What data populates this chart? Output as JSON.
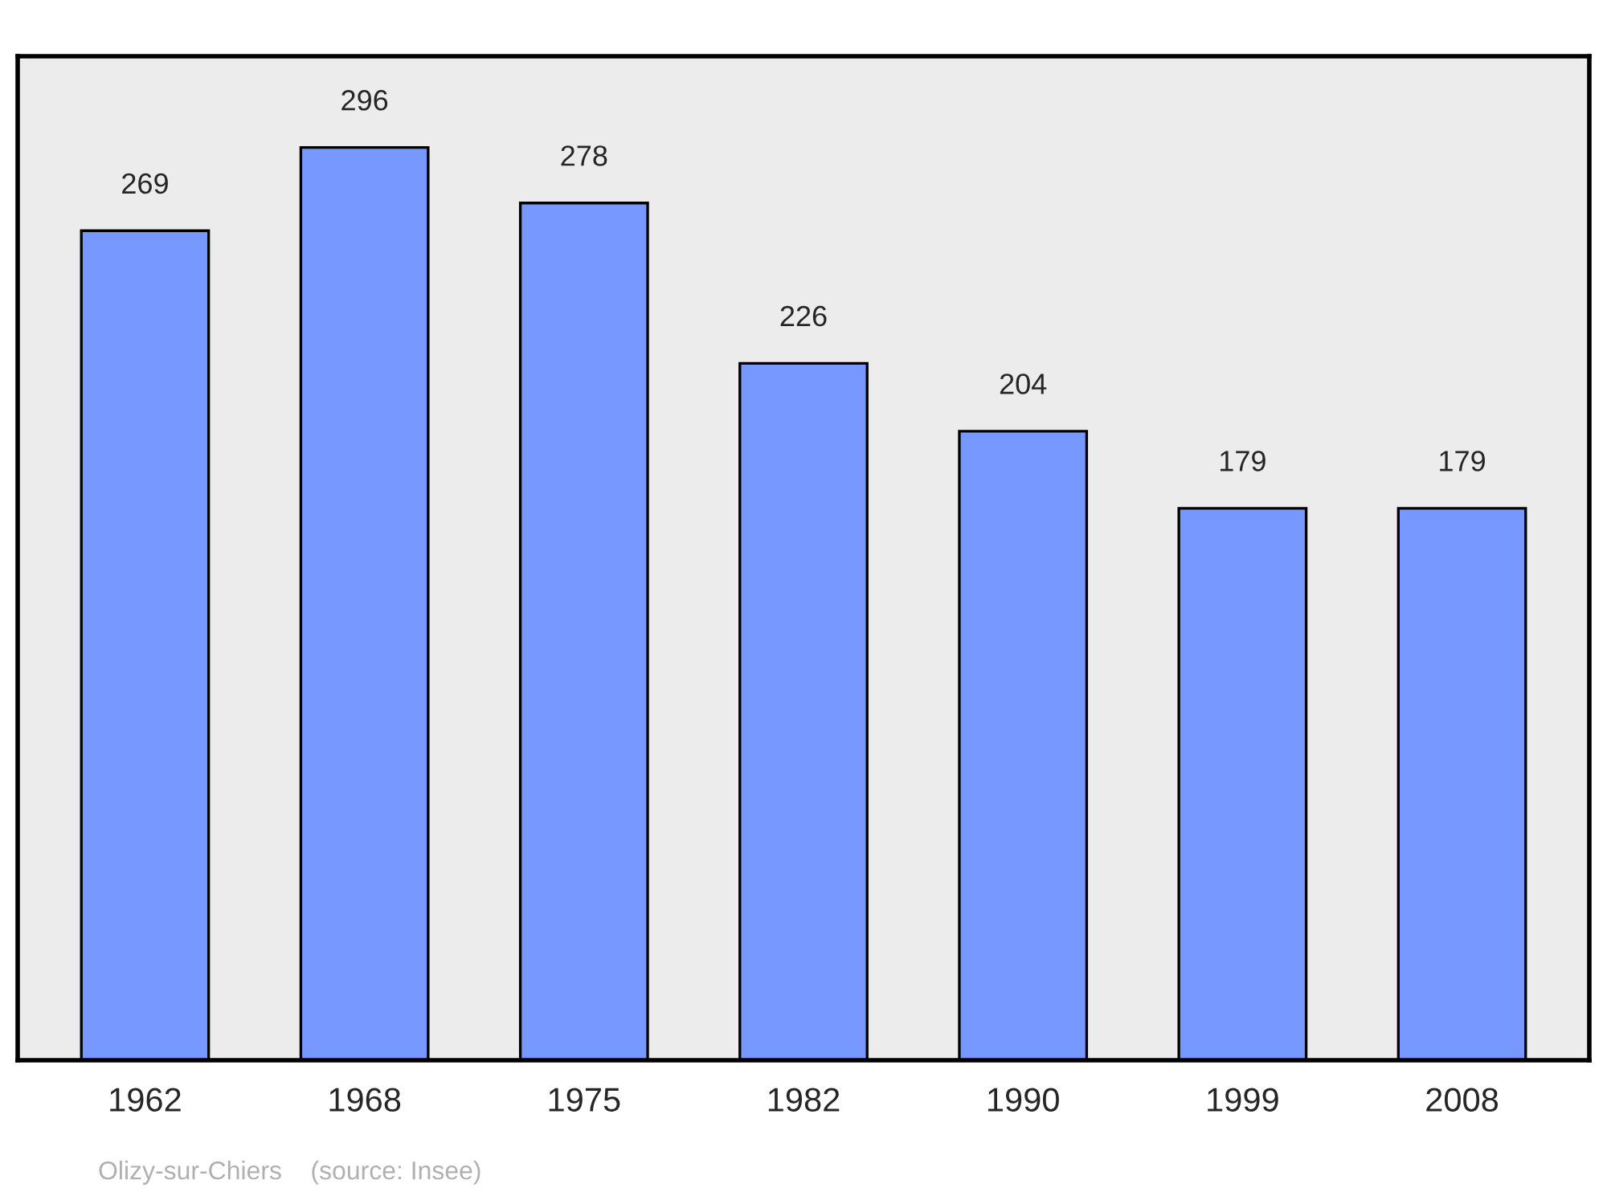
{
  "chart_data": {
    "type": "bar",
    "categories": [
      "1962",
      "1968",
      "1975",
      "1982",
      "1990",
      "1999",
      "2008"
    ],
    "values": [
      269,
      296,
      278,
      226,
      204,
      179,
      179
    ],
    "color": "#7799ff",
    "data_labels": true,
    "grid": false,
    "legend": false,
    "tick_labels": "x",
    "annotations": [
      "Olizy-sur-Chiers    (source: Insee)"
    ]
  }
}
